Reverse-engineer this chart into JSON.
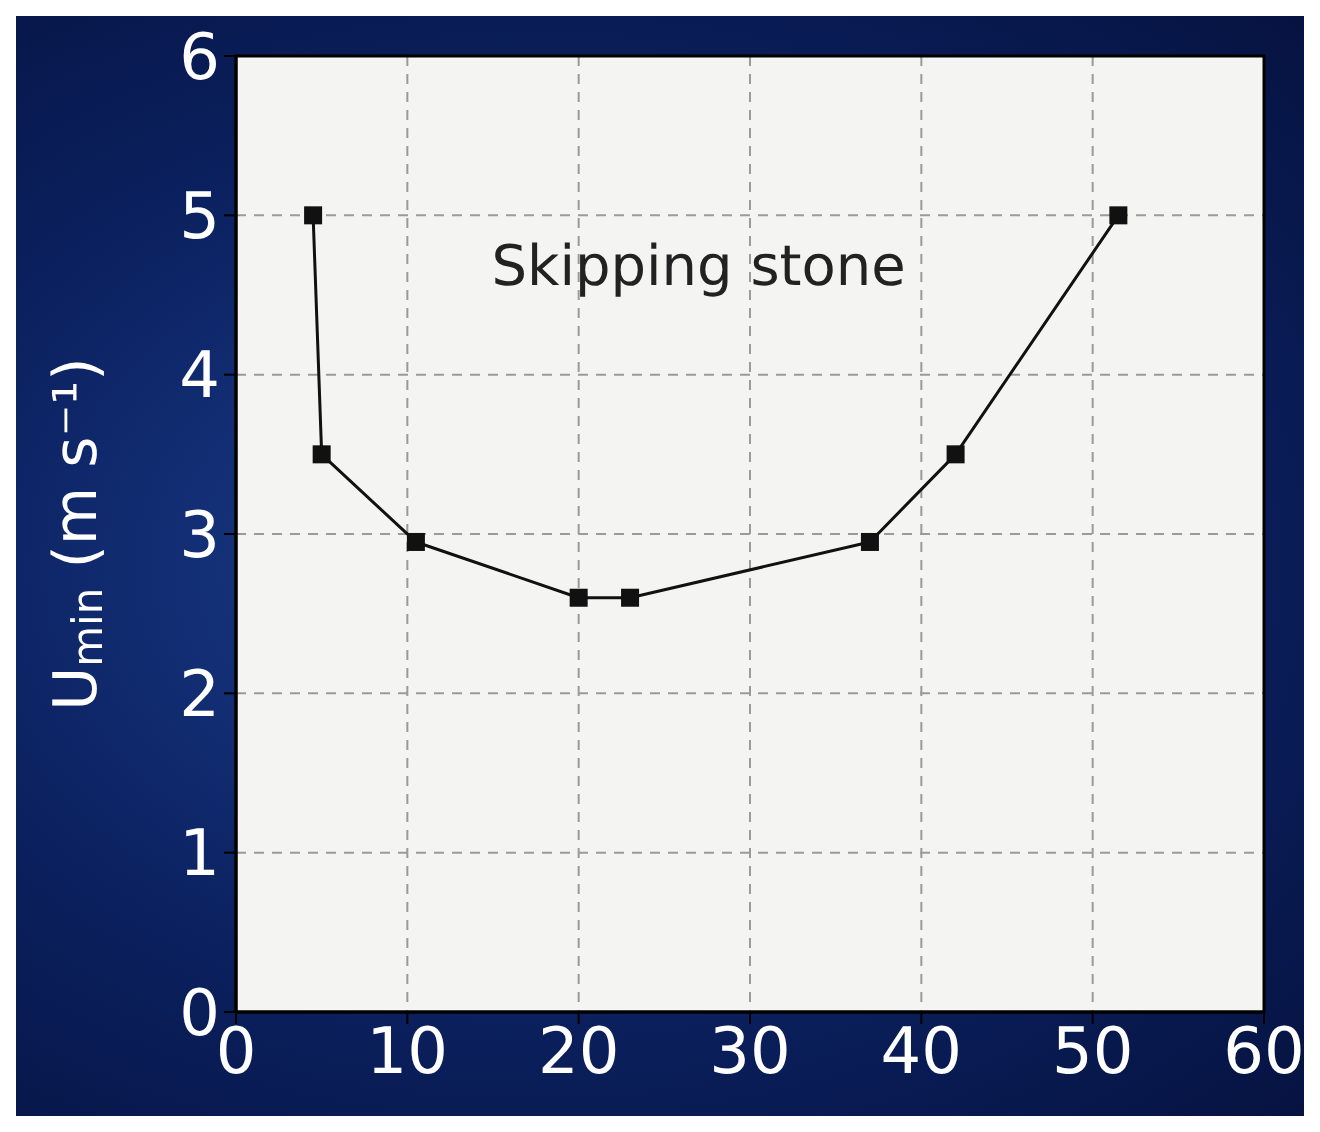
{
  "chart_data": {
    "type": "line",
    "ylabel": "U$_{min}$ (m s⁻¹)",
    "annotations": [
      "Skipping stone"
    ],
    "x": [
      4.5,
      5,
      10.5,
      20,
      23,
      37,
      42,
      51.5
    ],
    "series": [
      {
        "color": "#111111",
        "values": [
          5,
          3.5,
          2.95,
          2.6,
          2.6,
          2.95,
          3.5,
          5
        ]
      }
    ],
    "xlim": [
      0,
      60
    ],
    "xticks": [
      0,
      10,
      20,
      30,
      40,
      50,
      60
    ],
    "ylim": [
      0,
      6
    ],
    "yticks": [
      0,
      1,
      2,
      3,
      4,
      5,
      6
    ],
    "grid": true,
    "marker": "square",
    "line_style": "solid"
  }
}
